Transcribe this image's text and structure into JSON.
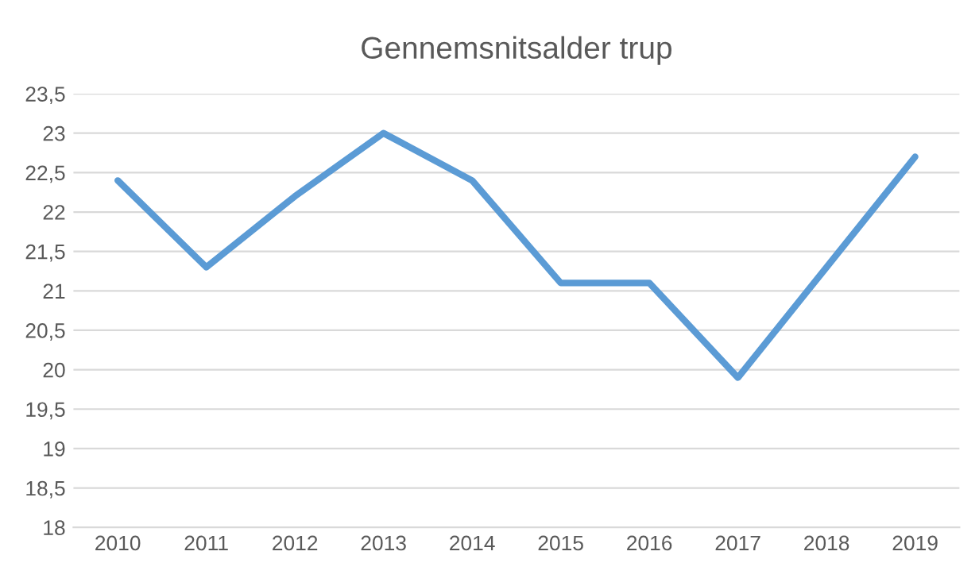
{
  "chart_data": {
    "type": "line",
    "title": "Gennemsnitsalder trup",
    "categories": [
      "2010",
      "2011",
      "2012",
      "2013",
      "2014",
      "2015",
      "2016",
      "2017",
      "2018",
      "2019"
    ],
    "series": [
      {
        "color": "#5b9bd5",
        "values": [
          22.4,
          21.3,
          22.2,
          23.0,
          22.4,
          21.1,
          21.1,
          19.9,
          21.3,
          22.7
        ]
      }
    ],
    "ylim": [
      18,
      23.5
    ],
    "yticks": [
      18,
      {
        "value": 18.5,
        "label": "18,5"
      },
      19,
      {
        "value": 19.5,
        "label": "19,5"
      },
      20,
      {
        "value": 20.5,
        "label": "20,5"
      },
      21,
      {
        "value": 21.5,
        "label": "21,5"
      },
      22,
      {
        "value": 22.5,
        "label": "22,5"
      },
      23,
      {
        "value": 23.5,
        "label": "23,5"
      }
    ],
    "grid": "y",
    "marker": "none",
    "line_style": "solid"
  }
}
